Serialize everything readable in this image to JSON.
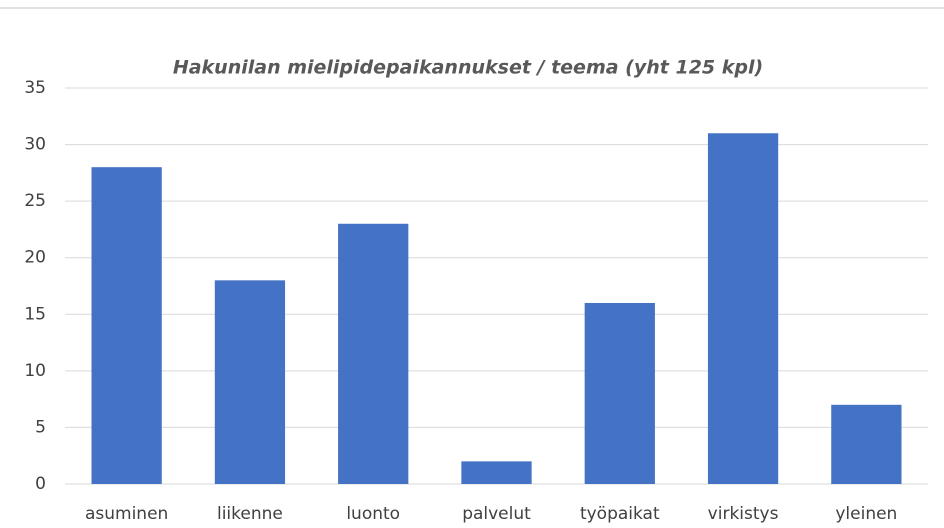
{
  "chart_data": {
    "type": "bar",
    "title": "Hakunilan mielipidepaikannukset   / teema (yht 125 kpl)",
    "categories": [
      "asuminen",
      "liikenne",
      "luonto",
      "palvelut",
      "työpaikat",
      "virkistys",
      "yleinen"
    ],
    "values": [
      28,
      18,
      23,
      2,
      16,
      31,
      7
    ],
    "color": "#4472c4",
    "ylim": [
      0,
      35
    ],
    "yticks": [
      0,
      5,
      10,
      15,
      20,
      25,
      30,
      35
    ],
    "grid": true
  }
}
